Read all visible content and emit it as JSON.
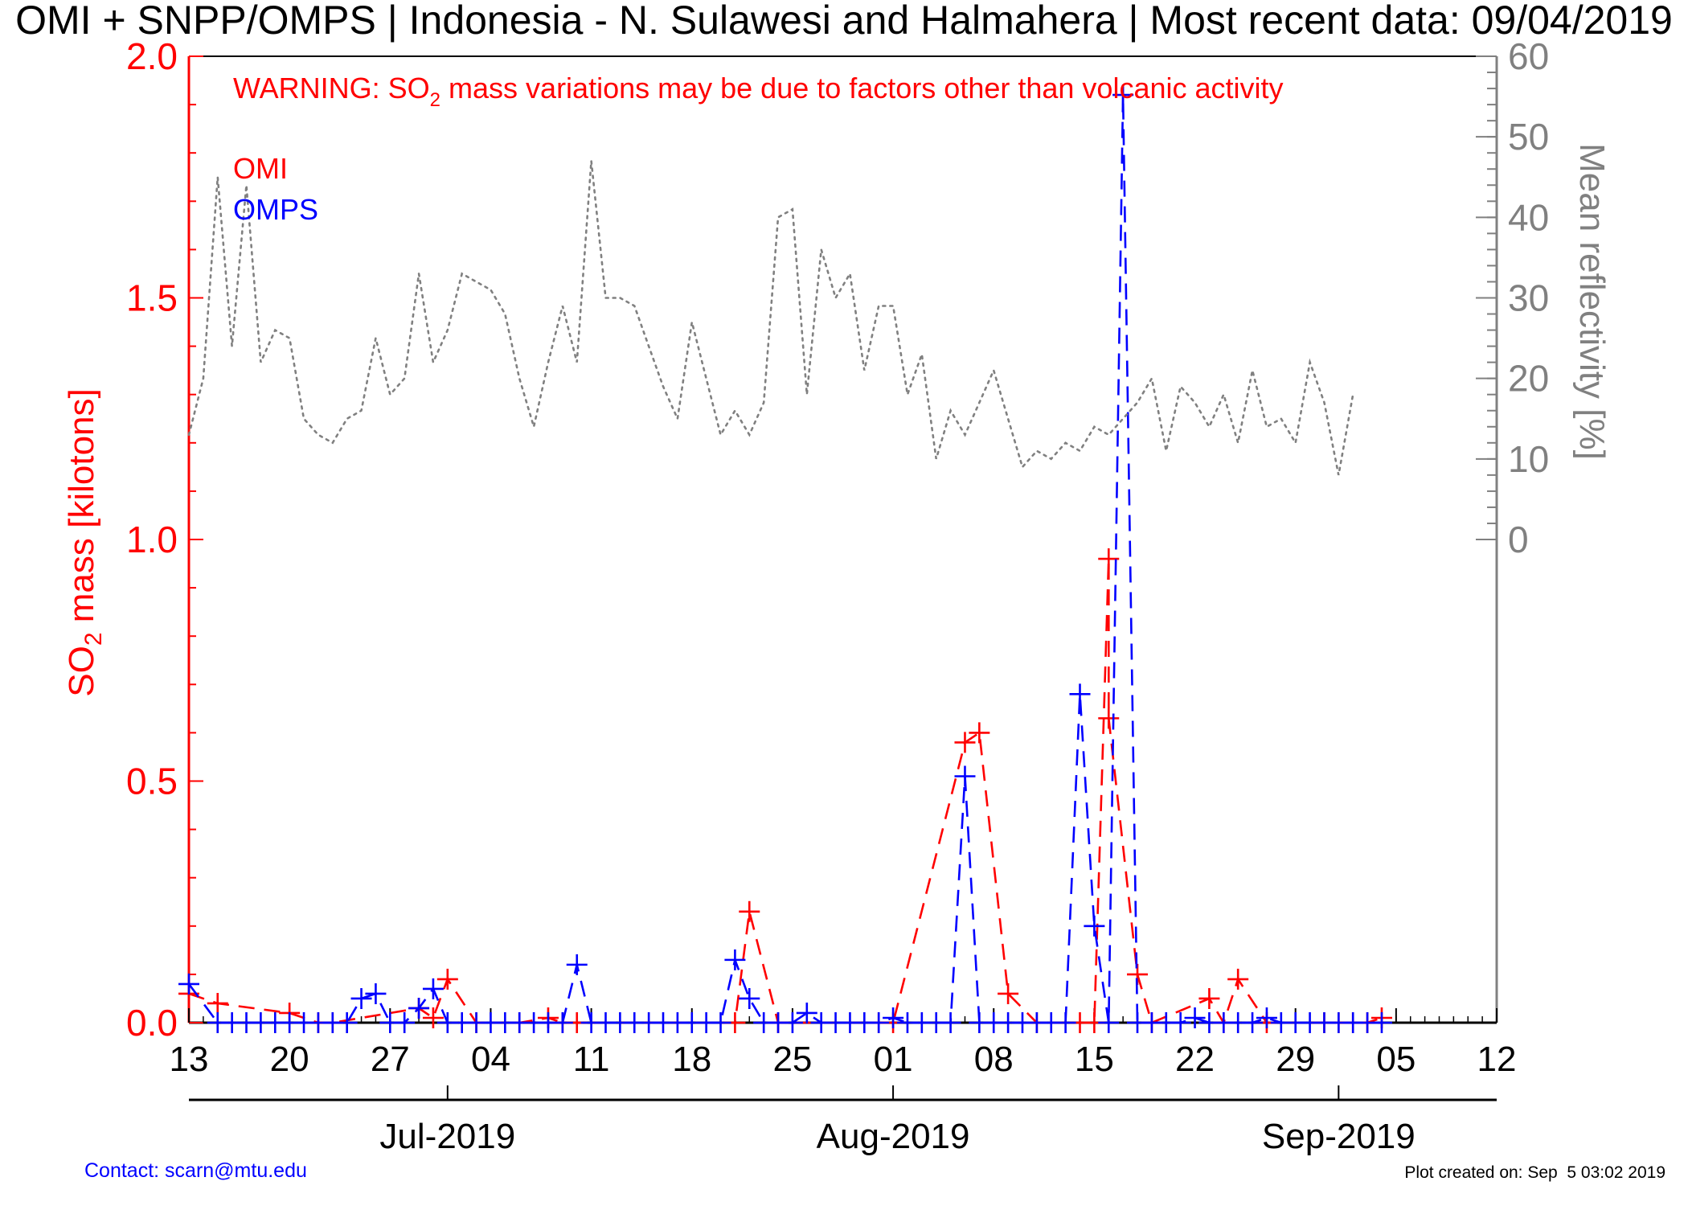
{
  "title": "OMI + SNPP/OMPS | Indonesia - N. Sulawesi and Halmahera | Most recent data: 09/04/2019",
  "warning": {
    "prefix": "WARNING: SO",
    "subscript": "2",
    "suffix": " mass variations may be due to factors other than volcanic activity"
  },
  "contact": "Contact: scarn@mtu.edu",
  "plot_created": "Plot created on: Sep  5 03:02 2019",
  "colors": {
    "omi": "#ff0000",
    "omps": "#0000ff",
    "reflectivity": "#808080",
    "axis": "#000000"
  },
  "chart_data": {
    "type": "line",
    "x_axis": {
      "start_date": "2019-06-13",
      "end_date": "2019-09-12",
      "day_ticks": [
        "13",
        "20",
        "27",
        "04",
        "11",
        "18",
        "25",
        "01",
        "08",
        "15",
        "22",
        "29",
        "05",
        "12"
      ],
      "months": [
        {
          "label": "Jul-2019",
          "date": "2019-07-01"
        },
        {
          "label": "Aug-2019",
          "date": "2019-08-01"
        },
        {
          "label": "Sep-2019",
          "date": "2019-09-01"
        }
      ]
    },
    "y_left": {
      "label_prefix": "SO",
      "label_sub": "2",
      "label_suffix": " mass [kilotons]",
      "range": [
        0,
        2.0
      ],
      "ticks": [
        "0.0",
        "0.5",
        "1.0",
        "1.5",
        "2.0"
      ]
    },
    "y_right": {
      "label": "Mean reflectivity [%]",
      "range": [
        -60,
        60
      ],
      "ticks": [
        "0",
        "10",
        "20",
        "30",
        "40",
        "50",
        "60"
      ]
    },
    "legend": [
      "OMI",
      "OMPS"
    ],
    "series": [
      {
        "name": "OMI",
        "axis": "left",
        "style": "dashed-plus",
        "color": "#ff0000",
        "points": [
          [
            "2019-06-13",
            0.06
          ],
          [
            "2019-06-15",
            0.04
          ],
          [
            "2019-06-20",
            0.02
          ],
          [
            "2019-06-22",
            0.0
          ],
          [
            "2019-06-23",
            0.0
          ],
          [
            "2019-06-29",
            0.03
          ],
          [
            "2019-06-30",
            0.01
          ],
          [
            "2019-07-01",
            0.09
          ],
          [
            "2019-07-03",
            0.0
          ],
          [
            "2019-07-06",
            0.0
          ],
          [
            "2019-07-08",
            0.01
          ],
          [
            "2019-07-09",
            0.0
          ],
          [
            "2019-07-10",
            0.0
          ],
          [
            "2019-07-21",
            0.0
          ],
          [
            "2019-07-22",
            0.23
          ],
          [
            "2019-07-24",
            0.0
          ],
          [
            "2019-07-31",
            0.0
          ],
          [
            "2019-08-01",
            0.0
          ],
          [
            "2019-08-06",
            0.58
          ],
          [
            "2019-08-07",
            0.6
          ],
          [
            "2019-08-09",
            0.06
          ],
          [
            "2019-08-11",
            0.0
          ],
          [
            "2019-08-14",
            0.0
          ],
          [
            "2019-08-15",
            0.0
          ],
          [
            "2019-08-16",
            0.96
          ],
          [
            "2019-08-16",
            0.63
          ],
          [
            "2019-08-18",
            0.1
          ],
          [
            "2019-08-19",
            0.0
          ],
          [
            "2019-08-23",
            0.05
          ],
          [
            "2019-08-24",
            0.0
          ],
          [
            "2019-08-25",
            0.09
          ],
          [
            "2019-08-27",
            0.0
          ],
          [
            "2019-08-31",
            0.0
          ],
          [
            "2019-09-01",
            0.0
          ],
          [
            "2019-09-02",
            0.0
          ],
          [
            "2019-09-03",
            0.0
          ],
          [
            "2019-09-04",
            0.01
          ]
        ]
      },
      {
        "name": "OMPS",
        "axis": "left",
        "style": "dashed-plus",
        "color": "#0000ff",
        "points": [
          [
            "2019-06-13",
            0.08
          ],
          [
            "2019-06-15",
            0.0
          ],
          [
            "2019-06-16",
            0.0
          ],
          [
            "2019-06-17",
            0.0
          ],
          [
            "2019-06-18",
            0.0
          ],
          [
            "2019-06-19",
            0.0
          ],
          [
            "2019-06-20",
            0.0
          ],
          [
            "2019-06-21",
            0.0
          ],
          [
            "2019-06-22",
            0.0
          ],
          [
            "2019-06-23",
            0.0
          ],
          [
            "2019-06-24",
            0.0
          ],
          [
            "2019-06-25",
            0.05
          ],
          [
            "2019-06-26",
            0.06
          ],
          [
            "2019-06-27",
            0.0
          ],
          [
            "2019-06-28",
            0.0
          ],
          [
            "2019-06-29",
            0.03
          ],
          [
            "2019-06-30",
            0.07
          ],
          [
            "2019-07-01",
            0.0
          ],
          [
            "2019-07-02",
            0.0
          ],
          [
            "2019-07-03",
            0.0
          ],
          [
            "2019-07-04",
            0.0
          ],
          [
            "2019-07-05",
            0.0
          ],
          [
            "2019-07-06",
            0.0
          ],
          [
            "2019-07-07",
            0.0
          ],
          [
            "2019-07-08",
            0.0
          ],
          [
            "2019-07-09",
            0.0
          ],
          [
            "2019-07-10",
            0.12
          ],
          [
            "2019-07-11",
            0.0
          ],
          [
            "2019-07-12",
            0.0
          ],
          [
            "2019-07-13",
            0.0
          ],
          [
            "2019-07-14",
            0.0
          ],
          [
            "2019-07-15",
            0.0
          ],
          [
            "2019-07-16",
            0.0
          ],
          [
            "2019-07-17",
            0.0
          ],
          [
            "2019-07-18",
            0.0
          ],
          [
            "2019-07-19",
            0.0
          ],
          [
            "2019-07-20",
            0.0
          ],
          [
            "2019-07-21",
            0.13
          ],
          [
            "2019-07-22",
            0.05
          ],
          [
            "2019-07-23",
            0.0
          ],
          [
            "2019-07-24",
            0.0
          ],
          [
            "2019-07-25",
            0.0
          ],
          [
            "2019-07-26",
            0.02
          ],
          [
            "2019-07-27",
            0.0
          ],
          [
            "2019-07-28",
            0.0
          ],
          [
            "2019-07-29",
            0.0
          ],
          [
            "2019-07-30",
            0.0
          ],
          [
            "2019-07-31",
            0.0
          ],
          [
            "2019-08-01",
            0.01
          ],
          [
            "2019-08-02",
            0.0
          ],
          [
            "2019-08-03",
            0.0
          ],
          [
            "2019-08-04",
            0.0
          ],
          [
            "2019-08-05",
            0.0
          ],
          [
            "2019-08-06",
            0.51
          ],
          [
            "2019-08-07",
            0.0
          ],
          [
            "2019-08-08",
            0.0
          ],
          [
            "2019-08-09",
            0.0
          ],
          [
            "2019-08-10",
            0.0
          ],
          [
            "2019-08-11",
            0.0
          ],
          [
            "2019-08-12",
            0.0
          ],
          [
            "2019-08-13",
            0.0
          ],
          [
            "2019-08-14",
            0.68
          ],
          [
            "2019-08-15",
            0.2
          ],
          [
            "2019-08-16",
            0.0
          ],
          [
            "2019-08-17",
            1.92
          ],
          [
            "2019-08-18",
            0.0
          ],
          [
            "2019-08-19",
            0.0
          ],
          [
            "2019-08-20",
            0.0
          ],
          [
            "2019-08-21",
            0.0
          ],
          [
            "2019-08-22",
            0.01
          ],
          [
            "2019-08-23",
            0.0
          ],
          [
            "2019-08-24",
            0.0
          ],
          [
            "2019-08-25",
            0.0
          ],
          [
            "2019-08-26",
            0.0
          ],
          [
            "2019-08-27",
            0.01
          ],
          [
            "2019-08-28",
            0.0
          ],
          [
            "2019-08-29",
            0.0
          ],
          [
            "2019-08-30",
            0.0
          ],
          [
            "2019-08-31",
            0.0
          ],
          [
            "2019-09-01",
            0.0
          ],
          [
            "2019-09-02",
            0.0
          ],
          [
            "2019-09-03",
            0.0
          ],
          [
            "2019-09-04",
            0.0
          ]
        ]
      },
      {
        "name": "Mean reflectivity",
        "axis": "right",
        "style": "dotted",
        "color": "#808080",
        "points": [
          [
            "2019-06-13",
            13
          ],
          [
            "2019-06-14",
            20
          ],
          [
            "2019-06-15",
            45
          ],
          [
            "2019-06-16",
            24
          ],
          [
            "2019-06-17",
            44
          ],
          [
            "2019-06-18",
            22
          ],
          [
            "2019-06-19",
            26
          ],
          [
            "2019-06-20",
            25
          ],
          [
            "2019-06-21",
            15
          ],
          [
            "2019-06-22",
            13
          ],
          [
            "2019-06-23",
            12
          ],
          [
            "2019-06-24",
            15
          ],
          [
            "2019-06-25",
            16
          ],
          [
            "2019-06-26",
            25
          ],
          [
            "2019-06-27",
            18
          ],
          [
            "2019-06-28",
            20
          ],
          [
            "2019-06-29",
            33
          ],
          [
            "2019-06-30",
            22
          ],
          [
            "2019-07-01",
            26
          ],
          [
            "2019-07-02",
            33
          ],
          [
            "2019-07-03",
            32
          ],
          [
            "2019-07-04",
            31
          ],
          [
            "2019-07-05",
            28
          ],
          [
            "2019-07-06",
            20
          ],
          [
            "2019-07-07",
            14
          ],
          [
            "2019-07-08",
            22
          ],
          [
            "2019-07-09",
            29
          ],
          [
            "2019-07-10",
            22
          ],
          [
            "2019-07-11",
            47
          ],
          [
            "2019-07-12",
            30
          ],
          [
            "2019-07-13",
            30
          ],
          [
            "2019-07-14",
            29
          ],
          [
            "2019-07-15",
            24
          ],
          [
            "2019-07-16",
            19
          ],
          [
            "2019-07-17",
            15
          ],
          [
            "2019-07-18",
            27
          ],
          [
            "2019-07-19",
            20
          ],
          [
            "2019-07-20",
            13
          ],
          [
            "2019-07-21",
            16
          ],
          [
            "2019-07-22",
            13
          ],
          [
            "2019-07-23",
            17
          ],
          [
            "2019-07-24",
            40
          ],
          [
            "2019-07-25",
            41
          ],
          [
            "2019-07-26",
            18
          ],
          [
            "2019-07-27",
            36
          ],
          [
            "2019-07-28",
            30
          ],
          [
            "2019-07-29",
            33
          ],
          [
            "2019-07-30",
            21
          ],
          [
            "2019-07-31",
            29
          ],
          [
            "2019-08-01",
            29
          ],
          [
            "2019-08-02",
            18
          ],
          [
            "2019-08-03",
            23
          ],
          [
            "2019-08-04",
            10
          ],
          [
            "2019-08-05",
            16
          ],
          [
            "2019-08-06",
            13
          ],
          [
            "2019-08-07",
            17
          ],
          [
            "2019-08-08",
            21
          ],
          [
            "2019-08-09",
            15
          ],
          [
            "2019-08-10",
            9
          ],
          [
            "2019-08-11",
            11
          ],
          [
            "2019-08-12",
            10
          ],
          [
            "2019-08-13",
            12
          ],
          [
            "2019-08-14",
            11
          ],
          [
            "2019-08-15",
            14
          ],
          [
            "2019-08-16",
            13
          ],
          [
            "2019-08-17",
            15
          ],
          [
            "2019-08-18",
            17
          ],
          [
            "2019-08-19",
            20
          ],
          [
            "2019-08-20",
            11
          ],
          [
            "2019-08-21",
            19
          ],
          [
            "2019-08-22",
            17
          ],
          [
            "2019-08-23",
            14
          ],
          [
            "2019-08-24",
            18
          ],
          [
            "2019-08-25",
            12
          ],
          [
            "2019-08-26",
            21
          ],
          [
            "2019-08-27",
            14
          ],
          [
            "2019-08-28",
            15
          ],
          [
            "2019-08-29",
            12
          ],
          [
            "2019-08-30",
            22
          ],
          [
            "2019-08-31",
            17
          ],
          [
            "2019-09-01",
            8
          ],
          [
            "2019-09-02",
            18
          ]
        ]
      }
    ]
  }
}
